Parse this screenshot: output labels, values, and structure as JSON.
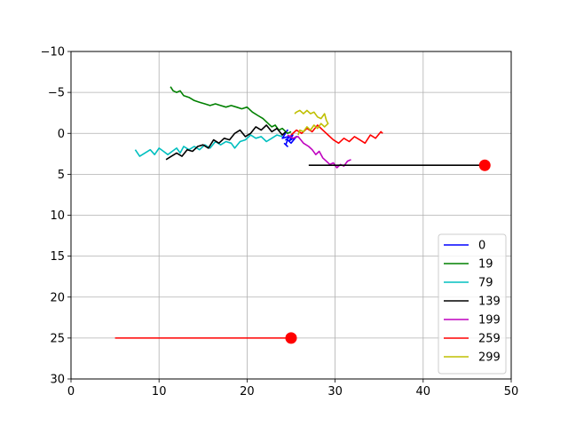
{
  "chart_data": {
    "type": "line",
    "title": "",
    "xlabel": "",
    "ylabel": "",
    "xlim": [
      0,
      50
    ],
    "ylim": [
      30,
      -10
    ],
    "y_inverted": true,
    "grid": true,
    "xticks": [
      "0",
      "10",
      "20",
      "30",
      "40",
      "50"
    ],
    "yticks": [
      "−10",
      "−5",
      "0",
      "5",
      "10",
      "15",
      "20",
      "25",
      "30"
    ],
    "legend_position": "lower-right",
    "series": [
      {
        "name": "0",
        "color": "#0000ff",
        "x": [
          24.2,
          24.6,
          24.0,
          25.0,
          24.4,
          25.2,
          24.8,
          25.6,
          25.0,
          24.6,
          24.4,
          24.6,
          24.2
        ],
        "y": [
          0.2,
          -0.4,
          0.6,
          0.3,
          0.8,
          0.2,
          0.9,
          0.4,
          1.2,
          0.8,
          1.4,
          1.6,
          1.2
        ]
      },
      {
        "name": "19",
        "color": "#008000",
        "x": [
          11.3,
          11.6,
          12.0,
          12.4,
          12.8,
          13.4,
          14.0,
          14.6,
          15.2,
          15.8,
          16.4,
          17.0,
          17.6,
          18.2,
          18.8,
          19.4,
          20.0,
          20.6,
          21.2,
          21.8,
          22.4,
          22.8,
          23.2,
          23.6,
          24.0,
          24.6,
          25.0
        ],
        "y": [
          -5.7,
          -5.2,
          -5.0,
          -5.2,
          -4.6,
          -4.4,
          -4.0,
          -3.8,
          -3.6,
          -3.4,
          -3.6,
          -3.4,
          -3.2,
          -3.4,
          -3.2,
          -3.0,
          -3.2,
          -2.6,
          -2.2,
          -1.8,
          -1.2,
          -0.8,
          -1.0,
          -0.4,
          -0.6,
          0.0,
          -0.2
        ]
      },
      {
        "name": "79",
        "color": "#00bfbf",
        "x": [
          7.3,
          7.8,
          8.4,
          9.0,
          9.5,
          10.0,
          10.5,
          11.0,
          11.5,
          12.0,
          12.4,
          12.8,
          13.4,
          14.0,
          14.6,
          15.2,
          15.8,
          16.4,
          17.0,
          17.6,
          18.2,
          18.6,
          19.2,
          19.8,
          20.4,
          21.0,
          21.6,
          22.2,
          22.8,
          23.4,
          24.0
        ],
        "y": [
          2.0,
          2.8,
          2.4,
          2.0,
          2.6,
          1.8,
          2.2,
          2.6,
          2.2,
          1.8,
          2.4,
          1.6,
          2.0,
          1.6,
          2.0,
          1.4,
          1.8,
          1.0,
          1.4,
          1.0,
          1.2,
          1.8,
          1.0,
          0.8,
          0.2,
          0.6,
          0.4,
          1.0,
          0.6,
          0.2,
          0.4
        ]
      },
      {
        "name": "139",
        "color": "#000000",
        "x": [
          10.8,
          11.4,
          12.0,
          12.6,
          13.2,
          13.8,
          14.4,
          15.0,
          15.6,
          16.2,
          16.8,
          17.4,
          18.0,
          18.6,
          19.2,
          19.8,
          20.4,
          21.0,
          21.6,
          22.2,
          22.8,
          23.4,
          24.0,
          24.4
        ],
        "y": [
          3.2,
          2.8,
          2.4,
          2.8,
          2.0,
          2.2,
          1.6,
          1.4,
          1.8,
          0.8,
          1.2,
          0.6,
          0.8,
          0.0,
          -0.4,
          0.4,
          0.0,
          -0.8,
          -0.4,
          -1.0,
          -0.2,
          -0.6,
          0.2,
          -0.2
        ]
      },
      {
        "name": "199",
        "color": "#bf00bf",
        "x": [
          24.6,
          25.2,
          25.8,
          26.4,
          27.0,
          27.4,
          27.8,
          28.2,
          28.6,
          29.0,
          29.4,
          29.8,
          30.2,
          30.6,
          31.0,
          31.4,
          31.8
        ],
        "y": [
          0.2,
          0.6,
          0.4,
          1.2,
          1.6,
          2.0,
          2.6,
          2.2,
          3.0,
          3.4,
          3.8,
          3.6,
          4.2,
          3.8,
          4.0,
          3.4,
          3.2
        ]
      },
      {
        "name": "259",
        "color": "#ff0000",
        "x": [
          25.0,
          25.6,
          26.2,
          26.8,
          27.4,
          28.0,
          28.6,
          29.2,
          29.8,
          30.4,
          31.0,
          31.6,
          32.2,
          32.8,
          33.4,
          34.0,
          34.6,
          35.2,
          35.4
        ],
        "y": [
          0.2,
          -0.4,
          0.0,
          -0.6,
          -0.2,
          -1.0,
          -0.4,
          0.2,
          0.8,
          1.2,
          0.6,
          1.0,
          0.4,
          0.8,
          1.2,
          0.2,
          0.6,
          -0.2,
          0.0
        ]
      },
      {
        "name": "299",
        "color": "#bfbf00",
        "x": [
          25.4,
          25.6,
          26.0,
          26.4,
          26.8,
          27.2,
          27.6,
          28.0,
          28.4,
          28.8,
          29.0,
          29.2,
          28.8,
          28.4,
          28.0,
          27.6,
          27.2,
          26.8,
          26.4,
          26.0,
          25.8
        ],
        "y": [
          -2.4,
          -2.6,
          -2.8,
          -2.4,
          -2.8,
          -2.4,
          -2.6,
          -2.0,
          -1.8,
          -2.4,
          -1.6,
          -1.2,
          -0.8,
          -1.2,
          -0.6,
          -1.0,
          -0.4,
          -0.8,
          -0.2,
          -0.4,
          0.2
        ]
      }
    ],
    "extra_lines": [
      {
        "color": "#000000",
        "x": [
          27,
          47
        ],
        "y": [
          3.9,
          3.9
        ]
      },
      {
        "color": "#ff0000",
        "x": [
          5,
          25
        ],
        "y": [
          25,
          25
        ]
      }
    ],
    "markers": [
      {
        "color": "#ff0000",
        "x": 47,
        "y": 3.9
      },
      {
        "color": "#ff0000",
        "x": 25,
        "y": 25
      }
    ]
  }
}
